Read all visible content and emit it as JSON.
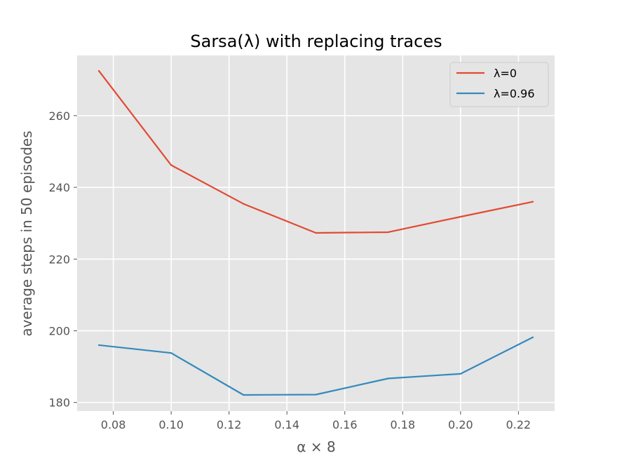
{
  "chart_data": {
    "type": "line",
    "title": "Sarsa(λ) with replacing traces",
    "xlabel": "α × 8",
    "ylabel": "average steps in 50 episodes",
    "x": [
      0.075,
      0.1,
      0.125,
      0.15,
      0.175,
      0.2,
      0.225
    ],
    "xlim": [
      0.0675,
      0.2325
    ],
    "ylim": [
      177.6,
      276.8
    ],
    "xticks": [
      "0.08",
      "0.10",
      "0.12",
      "0.14",
      "0.16",
      "0.18",
      "0.20",
      "0.22"
    ],
    "yticks": [
      "180",
      "200",
      "220",
      "240",
      "260"
    ],
    "grid": true,
    "legend_position": "upper right",
    "series": [
      {
        "name": "λ=0",
        "color": "#E24A33",
        "values": [
          272.5,
          246.2,
          235.4,
          227.3,
          227.5,
          231.8,
          236.0
        ]
      },
      {
        "name": "λ=0.96",
        "color": "#348ABD",
        "values": [
          196.0,
          193.8,
          182.1,
          182.2,
          186.7,
          188.0,
          198.2
        ]
      }
    ]
  }
}
